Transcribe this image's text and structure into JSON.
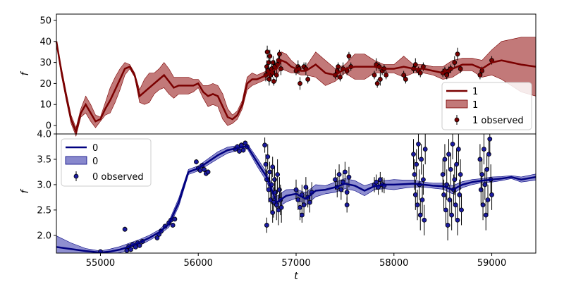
{
  "chart_data": [
    {
      "type": "line",
      "panel": "top",
      "xlabel": "",
      "ylabel": "f",
      "xlim": [
        54550,
        59450
      ],
      "ylim": [
        -4,
        53
      ],
      "yticks": [
        0,
        10,
        20,
        30,
        40,
        50
      ],
      "ytick_labels": [
        "0",
        "10",
        "20",
        "30",
        "40",
        "50"
      ],
      "colors": {
        "line": "#7a0000",
        "band": "#a84040",
        "point": "#7a0000"
      },
      "legend": {
        "position": "lower right",
        "entries": [
          "1",
          "1",
          "1 observed"
        ]
      },
      "series": [
        {
          "name": "1",
          "x": [
            54550,
            54600,
            54650,
            54700,
            54750,
            54800,
            54850,
            54900,
            54950,
            55000,
            55050,
            55100,
            55150,
            55200,
            55250,
            55300,
            55350,
            55400,
            55450,
            55500,
            55550,
            55600,
            55650,
            55700,
            55750,
            55800,
            55850,
            55900,
            55950,
            56000,
            56050,
            56100,
            56150,
            56200,
            56250,
            56300,
            56350,
            56400,
            56450,
            56500,
            56550,
            56600,
            56650,
            56700,
            56750,
            56800,
            56850,
            56900,
            56950,
            57000,
            57050,
            57100,
            57200,
            57300,
            57400,
            57500,
            57600,
            57700,
            57800,
            57900,
            58000,
            58100,
            58200,
            58300,
            58400,
            58500,
            58600,
            58700,
            58800,
            58900,
            59000,
            59100,
            59200,
            59300,
            59450
          ],
          "y": [
            40,
            26,
            14,
            3,
            -3,
            6,
            10,
            6,
            2,
            3,
            8,
            12,
            17,
            22,
            27,
            28,
            24,
            14,
            16,
            18,
            20,
            22,
            24,
            21,
            18,
            19,
            19,
            19,
            19,
            20,
            16,
            14,
            15,
            14,
            9,
            4,
            3,
            5,
            10,
            20,
            22,
            22,
            23,
            24,
            26,
            27,
            31,
            30,
            28,
            27,
            26,
            26,
            29,
            25,
            24,
            27,
            28,
            28,
            28,
            27,
            27,
            28,
            27,
            27,
            26,
            25,
            27,
            29,
            29,
            27,
            30,
            31,
            30,
            29,
            28
          ],
          "band": [
            0,
            2,
            2,
            2,
            2,
            2,
            4,
            4,
            3,
            1,
            3,
            6,
            6,
            5,
            3,
            1,
            1,
            3,
            6,
            7,
            5,
            5,
            6,
            6,
            5,
            4,
            4,
            4,
            3,
            2,
            3,
            5,
            5,
            5,
            6,
            4,
            2,
            2,
            2,
            3,
            3,
            2,
            2,
            2,
            2,
            3,
            4,
            4,
            3,
            2,
            2,
            2,
            6,
            6,
            3,
            2,
            6,
            6,
            3,
            2,
            2,
            5,
            2,
            2,
            2,
            3,
            4,
            3,
            3,
            4,
            6,
            9,
            11,
            13,
            14
          ]
        }
      ],
      "observed_series": "1 observed"
    },
    {
      "type": "line",
      "panel": "bottom",
      "xlabel": "t",
      "ylabel": "f",
      "xlim": [
        54550,
        59450
      ],
      "ylim": [
        1.65,
        4.0
      ],
      "xticks": [
        55000,
        56000,
        57000,
        58000,
        59000
      ],
      "xtick_labels": [
        "55000",
        "56000",
        "57000",
        "58000",
        "59000"
      ],
      "yticks": [
        2.0,
        2.5,
        3.0,
        3.5,
        4.0
      ],
      "ytick_labels": [
        "2.0",
        "2.5",
        "3.0",
        "3.5",
        "4.0"
      ],
      "colors": {
        "line": "#000080",
        "band": "#6a6ac0",
        "point": "#1a1aa0"
      },
      "legend": {
        "position": "upper left",
        "entries": [
          "0",
          "0",
          "0 observed"
        ]
      },
      "series": [
        {
          "name": "0",
          "x": [
            54550,
            54700,
            54850,
            55000,
            55100,
            55200,
            55300,
            55400,
            55500,
            55600,
            55700,
            55800,
            55900,
            56000,
            56100,
            56200,
            56300,
            56400,
            56500,
            56600,
            56700,
            56800,
            56900,
            57000,
            57100,
            57200,
            57300,
            57400,
            57500,
            57600,
            57700,
            57800,
            57900,
            58000,
            58100,
            58200,
            58300,
            58400,
            58500,
            58600,
            58700,
            58800,
            58900,
            59000,
            59100,
            59200,
            59300,
            59450
          ],
          "y": [
            1.77,
            1.73,
            1.69,
            1.66,
            1.68,
            1.72,
            1.78,
            1.86,
            1.95,
            2.06,
            2.22,
            2.65,
            3.25,
            3.32,
            3.45,
            3.58,
            3.68,
            3.72,
            3.76,
            3.45,
            3.15,
            2.65,
            2.78,
            2.82,
            2.72,
            2.88,
            2.9,
            2.95,
            3.02,
            2.98,
            2.88,
            2.97,
            3.0,
            3.0,
            3.01,
            3.02,
            3.0,
            2.98,
            2.97,
            2.9,
            3.0,
            3.05,
            3.08,
            3.1,
            3.12,
            3.15,
            3.1,
            3.15
          ],
          "band": [
            0.22,
            0.12,
            0.05,
            0.03,
            0.05,
            0.06,
            0.07,
            0.06,
            0.05,
            0.05,
            0.06,
            0.08,
            0.05,
            0.05,
            0.06,
            0.07,
            0.06,
            0.05,
            0.05,
            0.08,
            0.09,
            0.12,
            0.12,
            0.09,
            0.12,
            0.12,
            0.08,
            0.1,
            0.1,
            0.1,
            0.1,
            0.07,
            0.08,
            0.1,
            0.08,
            0.07,
            0.05,
            0.05,
            0.06,
            0.08,
            0.06,
            0.05,
            0.04,
            0.05,
            0.04,
            0.03,
            0.05,
            0.06
          ]
        }
      ],
      "observed_series": "0 observed"
    }
  ],
  "observations": {
    "top": [
      [
        56690,
        24,
        3
      ],
      [
        56700,
        28,
        3
      ],
      [
        56705,
        35,
        3
      ],
      [
        56712,
        26,
        2
      ],
      [
        56720,
        30,
        3
      ],
      [
        56725,
        22,
        3
      ],
      [
        56732,
        33,
        3
      ],
      [
        56740,
        24,
        2
      ],
      [
        56750,
        27,
        3
      ],
      [
        56758,
        25,
        2
      ],
      [
        56765,
        30,
        3
      ],
      [
        56772,
        21,
        2
      ],
      [
        56780,
        28,
        3
      ],
      [
        56800,
        24,
        3
      ],
      [
        56810,
        29,
        2
      ],
      [
        56820,
        31,
        3
      ],
      [
        56830,
        34,
        2
      ],
      [
        56845,
        27,
        3
      ],
      [
        57000,
        26,
        2
      ],
      [
        57020,
        28,
        3
      ],
      [
        57030,
        27,
        2
      ],
      [
        57040,
        20,
        3
      ],
      [
        57080,
        28,
        2
      ],
      [
        57100,
        27,
        3
      ],
      [
        57120,
        22,
        2
      ],
      [
        57400,
        24,
        2
      ],
      [
        57420,
        26,
        3
      ],
      [
        57430,
        28,
        2
      ],
      [
        57450,
        23,
        2
      ],
      [
        57480,
        27,
        3
      ],
      [
        57520,
        26,
        2
      ],
      [
        57540,
        33,
        2
      ],
      [
        57560,
        28,
        2
      ],
      [
        57800,
        24,
        2
      ],
      [
        57820,
        29,
        3
      ],
      [
        57830,
        20,
        2
      ],
      [
        57850,
        28,
        2
      ],
      [
        57860,
        22,
        3
      ],
      [
        57880,
        26,
        2
      ],
      [
        57900,
        27,
        2
      ],
      [
        57920,
        24,
        2
      ],
      [
        58100,
        24,
        2
      ],
      [
        58120,
        22,
        2
      ],
      [
        58200,
        27,
        2
      ],
      [
        58220,
        29,
        3
      ],
      [
        58250,
        26,
        2
      ],
      [
        58270,
        25,
        2
      ],
      [
        58300,
        28,
        2
      ],
      [
        58500,
        25,
        2
      ],
      [
        58520,
        26,
        2
      ],
      [
        58540,
        24,
        2
      ],
      [
        58560,
        26,
        2
      ],
      [
        58580,
        27,
        2
      ],
      [
        58620,
        30,
        3
      ],
      [
        58650,
        34,
        3
      ],
      [
        58680,
        27,
        2
      ],
      [
        58880,
        24,
        2
      ],
      [
        58900,
        26,
        2
      ],
      [
        59000,
        31,
        2
      ]
    ],
    "bottom": [
      [
        55000,
        1.68,
        0.03
      ],
      [
        55250,
        2.12,
        0.05
      ],
      [
        55270,
        1.7,
        0.05
      ],
      [
        55290,
        1.78,
        0.04
      ],
      [
        55310,
        1.72,
        0.05
      ],
      [
        55330,
        1.82,
        0.04
      ],
      [
        55360,
        1.77,
        0.04
      ],
      [
        55380,
        1.85,
        0.04
      ],
      [
        55400,
        1.8,
        0.05
      ],
      [
        55430,
        1.88,
        0.04
      ],
      [
        55580,
        1.95,
        0.05
      ],
      [
        55600,
        2.02,
        0.04
      ],
      [
        55620,
        2.08,
        0.04
      ],
      [
        55660,
        2.18,
        0.04
      ],
      [
        55700,
        2.25,
        0.04
      ],
      [
        55720,
        2.3,
        0.04
      ],
      [
        55740,
        2.2,
        0.04
      ],
      [
        55760,
        2.32,
        0.04
      ],
      [
        55980,
        3.45,
        0.05
      ],
      [
        56000,
        3.32,
        0.05
      ],
      [
        56020,
        3.28,
        0.05
      ],
      [
        56040,
        3.38,
        0.05
      ],
      [
        56060,
        3.3,
        0.05
      ],
      [
        56080,
        3.22,
        0.05
      ],
      [
        56100,
        3.25,
        0.05
      ],
      [
        56380,
        3.7,
        0.05
      ],
      [
        56400,
        3.75,
        0.05
      ],
      [
        56420,
        3.66,
        0.05
      ],
      [
        56440,
        3.78,
        0.05
      ],
      [
        56460,
        3.68,
        0.05
      ],
      [
        56480,
        3.82,
        0.05
      ],
      [
        56500,
        3.75,
        0.05
      ],
      [
        56680,
        3.78,
        0.15
      ],
      [
        56690,
        3.4,
        0.2
      ],
      [
        56700,
        3.1,
        0.2
      ],
      [
        56710,
        3.55,
        0.25
      ],
      [
        56720,
        2.9,
        0.25
      ],
      [
        56730,
        3.25,
        0.2
      ],
      [
        56740,
        2.7,
        0.25
      ],
      [
        56750,
        3.0,
        0.3
      ],
      [
        56760,
        3.35,
        0.2
      ],
      [
        56770,
        2.65,
        0.3
      ],
      [
        56780,
        3.1,
        0.25
      ],
      [
        56790,
        2.85,
        0.3
      ],
      [
        56800,
        2.6,
        0.3
      ],
      [
        56810,
        3.2,
        0.3
      ],
      [
        56820,
        2.5,
        0.3
      ],
      [
        56830,
        2.9,
        0.25
      ],
      [
        56840,
        2.7,
        0.3
      ],
      [
        56850,
        2.55,
        0.3
      ],
      [
        56700,
        2.2,
        0.15
      ],
      [
        56760,
        2.45,
        0.2
      ],
      [
        57000,
        2.9,
        0.2
      ],
      [
        57020,
        2.7,
        0.2
      ],
      [
        57040,
        2.55,
        0.25
      ],
      [
        57060,
        2.8,
        0.2
      ],
      [
        57080,
        2.6,
        0.2
      ],
      [
        57100,
        2.95,
        0.2
      ],
      [
        57120,
        2.75,
        0.2
      ],
      [
        57140,
        2.65,
        0.2
      ],
      [
        57160,
        2.85,
        0.2
      ],
      [
        57060,
        2.4,
        0.15
      ],
      [
        57400,
        3.1,
        0.2
      ],
      [
        57420,
        2.95,
        0.2
      ],
      [
        57440,
        3.2,
        0.2
      ],
      [
        57460,
        2.9,
        0.2
      ],
      [
        57480,
        3.05,
        0.2
      ],
      [
        57500,
        3.25,
        0.2
      ],
      [
        57520,
        2.85,
        0.2
      ],
      [
        57540,
        3.15,
        0.2
      ],
      [
        57520,
        2.6,
        0.15
      ],
      [
        57800,
        3.0,
        0.15
      ],
      [
        57820,
        3.05,
        0.15
      ],
      [
        57840,
        2.95,
        0.15
      ],
      [
        57860,
        3.1,
        0.15
      ],
      [
        57880,
        3.0,
        0.15
      ],
      [
        57900,
        2.98,
        0.15
      ],
      [
        58200,
        3.6,
        0.3
      ],
      [
        58210,
        3.2,
        0.3
      ],
      [
        58220,
        2.8,
        0.3
      ],
      [
        58230,
        3.4,
        0.3
      ],
      [
        58240,
        2.6,
        0.3
      ],
      [
        58250,
        3.8,
        0.3
      ],
      [
        58260,
        3.0,
        0.3
      ],
      [
        58270,
        2.4,
        0.3
      ],
      [
        58280,
        3.5,
        0.3
      ],
      [
        58290,
        2.7,
        0.3
      ],
      [
        58300,
        3.1,
        0.3
      ],
      [
        58310,
        2.3,
        0.3
      ],
      [
        58320,
        3.7,
        0.3
      ],
      [
        58500,
        3.2,
        0.3
      ],
      [
        58510,
        2.8,
        0.3
      ],
      [
        58520,
        3.5,
        0.3
      ],
      [
        58530,
        2.5,
        0.3
      ],
      [
        58540,
        3.0,
        0.3
      ],
      [
        58550,
        2.2,
        0.3
      ],
      [
        58560,
        3.6,
        0.3
      ],
      [
        58570,
        2.7,
        0.3
      ],
      [
        58580,
        3.3,
        0.3
      ],
      [
        58590,
        2.4,
        0.3
      ],
      [
        58600,
        3.8,
        0.3
      ],
      [
        58610,
        2.9,
        0.3
      ],
      [
        58620,
        3.1,
        0.3
      ],
      [
        58630,
        2.6,
        0.3
      ],
      [
        58640,
        3.4,
        0.3
      ],
      [
        58650,
        2.3,
        0.3
      ],
      [
        58660,
        3.7,
        0.3
      ],
      [
        58670,
        2.8,
        0.3
      ],
      [
        58680,
        3.2,
        0.3
      ],
      [
        58690,
        2.5,
        0.3
      ],
      [
        58880,
        3.5,
        0.3
      ],
      [
        58890,
        2.9,
        0.3
      ],
      [
        58900,
        3.2,
        0.3
      ],
      [
        58910,
        2.6,
        0.3
      ],
      [
        58920,
        3.7,
        0.3
      ],
      [
        58930,
        3.0,
        0.3
      ],
      [
        58940,
        2.4,
        0.3
      ],
      [
        58950,
        3.3,
        0.3
      ],
      [
        58960,
        2.7,
        0.3
      ],
      [
        58970,
        3.6,
        0.3
      ],
      [
        58980,
        3.9,
        0.3
      ],
      [
        58990,
        3.1,
        0.3
      ],
      [
        59000,
        2.8,
        0.3
      ]
    ]
  }
}
